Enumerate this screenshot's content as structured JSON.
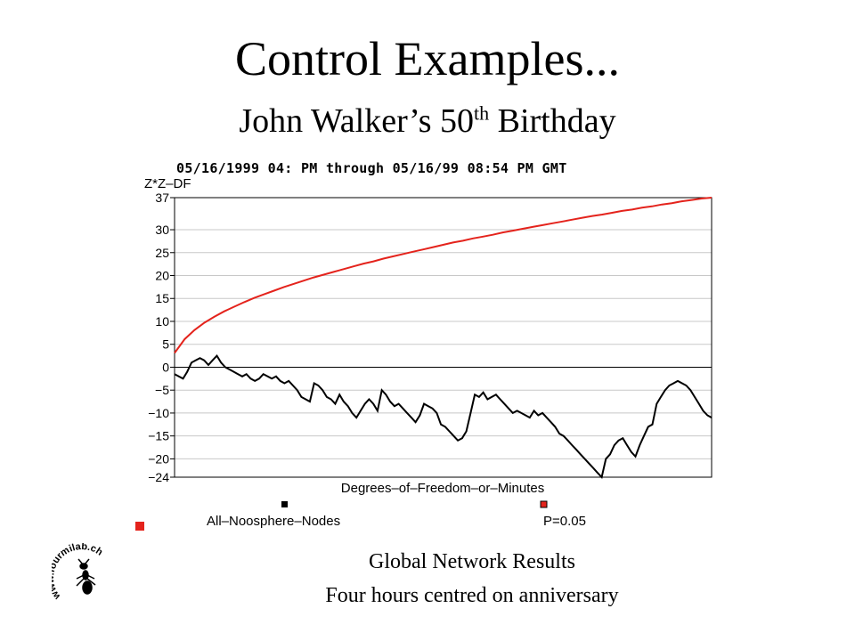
{
  "slide": {
    "title": "Control Examples...",
    "subtitle_main": "John Walker’s 50",
    "subtitle_sup": "th",
    "subtitle_end": " Birthday",
    "footer_line1": "Global Network Results",
    "footer_line2": "Four hours centred on anniversary",
    "logo_text": "www.fourmilab.ch"
  },
  "colors": {
    "red_curve": "#e4231c",
    "data_curve": "#000000",
    "grid": "#c8c8c8"
  },
  "chart_data": {
    "type": "line",
    "title": "05/16/1999 04: PM through 05/16/99 08:54 PM GMT",
    "ylabel": "Z*Z–DF",
    "xlabel": "Degrees–of–Freedom–or–Minutes",
    "ylim": [
      -24,
      37
    ],
    "yticks": [
      "37",
      "30",
      "25",
      "20",
      "15",
      "10",
      "5",
      "0",
      "−5",
      "−10",
      "−15",
      "−20",
      "−24"
    ],
    "ytick_values": [
      37,
      30,
      25,
      20,
      15,
      10,
      5,
      0,
      -5,
      -10,
      -15,
      -20,
      -24
    ],
    "grid": true,
    "legend_position": "bottom",
    "series": [
      {
        "name": "All–Noosphere–Nodes",
        "color": "#000000",
        "values": [
          -1.5,
          -2,
          -2.5,
          -1,
          1,
          1.5,
          2,
          1.5,
          0.5,
          1.5,
          2.5,
          1,
          0,
          -0.5,
          -1,
          -1.5,
          -2,
          -1.5,
          -2.5,
          -3,
          -2.5,
          -1.5,
          -2,
          -2.5,
          -2,
          -3,
          -3.5,
          -3,
          -4,
          -5,
          -6.5,
          -7,
          -7.5,
          -3.5,
          -4,
          -5,
          -6.5,
          -7,
          -8,
          -6,
          -7.5,
          -8.5,
          -10,
          -11,
          -9.5,
          -8,
          -7,
          -8,
          -9.5,
          -5,
          -6,
          -7.5,
          -8.5,
          -8,
          -9,
          -10,
          -11,
          -12,
          -10.5,
          -8,
          -8.5,
          -9,
          -10,
          -12.5,
          -13,
          -14,
          -15,
          -16,
          -15.5,
          -14,
          -10,
          -6,
          -6.5,
          -5.5,
          -7,
          -6.5,
          -6,
          -7,
          -8,
          -9,
          -10,
          -9.5,
          -10,
          -10.5,
          -11,
          -9.5,
          -10.5,
          -10,
          -11,
          -12,
          -13,
          -14.5,
          -15,
          -16,
          -17,
          -18,
          -19,
          -20,
          -21,
          -22,
          -23,
          -24,
          -20,
          -19,
          -17,
          -16,
          -15.5,
          -17,
          -18.5,
          -19.5,
          -17,
          -15,
          -13,
          -12.5,
          -8,
          -6.5,
          -5,
          -4,
          -3.5,
          -3,
          -3.5,
          -4,
          -5,
          -6.5,
          -8,
          -9.5,
          -10.5,
          -11
        ]
      },
      {
        "name": "P=0.05",
        "color": "#e4231c",
        "values": [
          3.1,
          6.1,
          8.1,
          9.7,
          11,
          12.2,
          13.2,
          14.2,
          15.1,
          15.9,
          16.7,
          17.5,
          18.2,
          18.9,
          19.6,
          20.2,
          20.8,
          21.4,
          22,
          22.6,
          23.1,
          23.7,
          24.2,
          24.7,
          25.2,
          25.7,
          26.2,
          26.7,
          27.2,
          27.6,
          28.1,
          28.5,
          28.9,
          29.4,
          29.8,
          30.2,
          30.6,
          31,
          31.4,
          31.8,
          32.2,
          32.6,
          33,
          33.3,
          33.7,
          34.1,
          34.4,
          34.8,
          35.1,
          35.5,
          35.8,
          36.2,
          36.5,
          36.8,
          37
        ]
      }
    ]
  }
}
